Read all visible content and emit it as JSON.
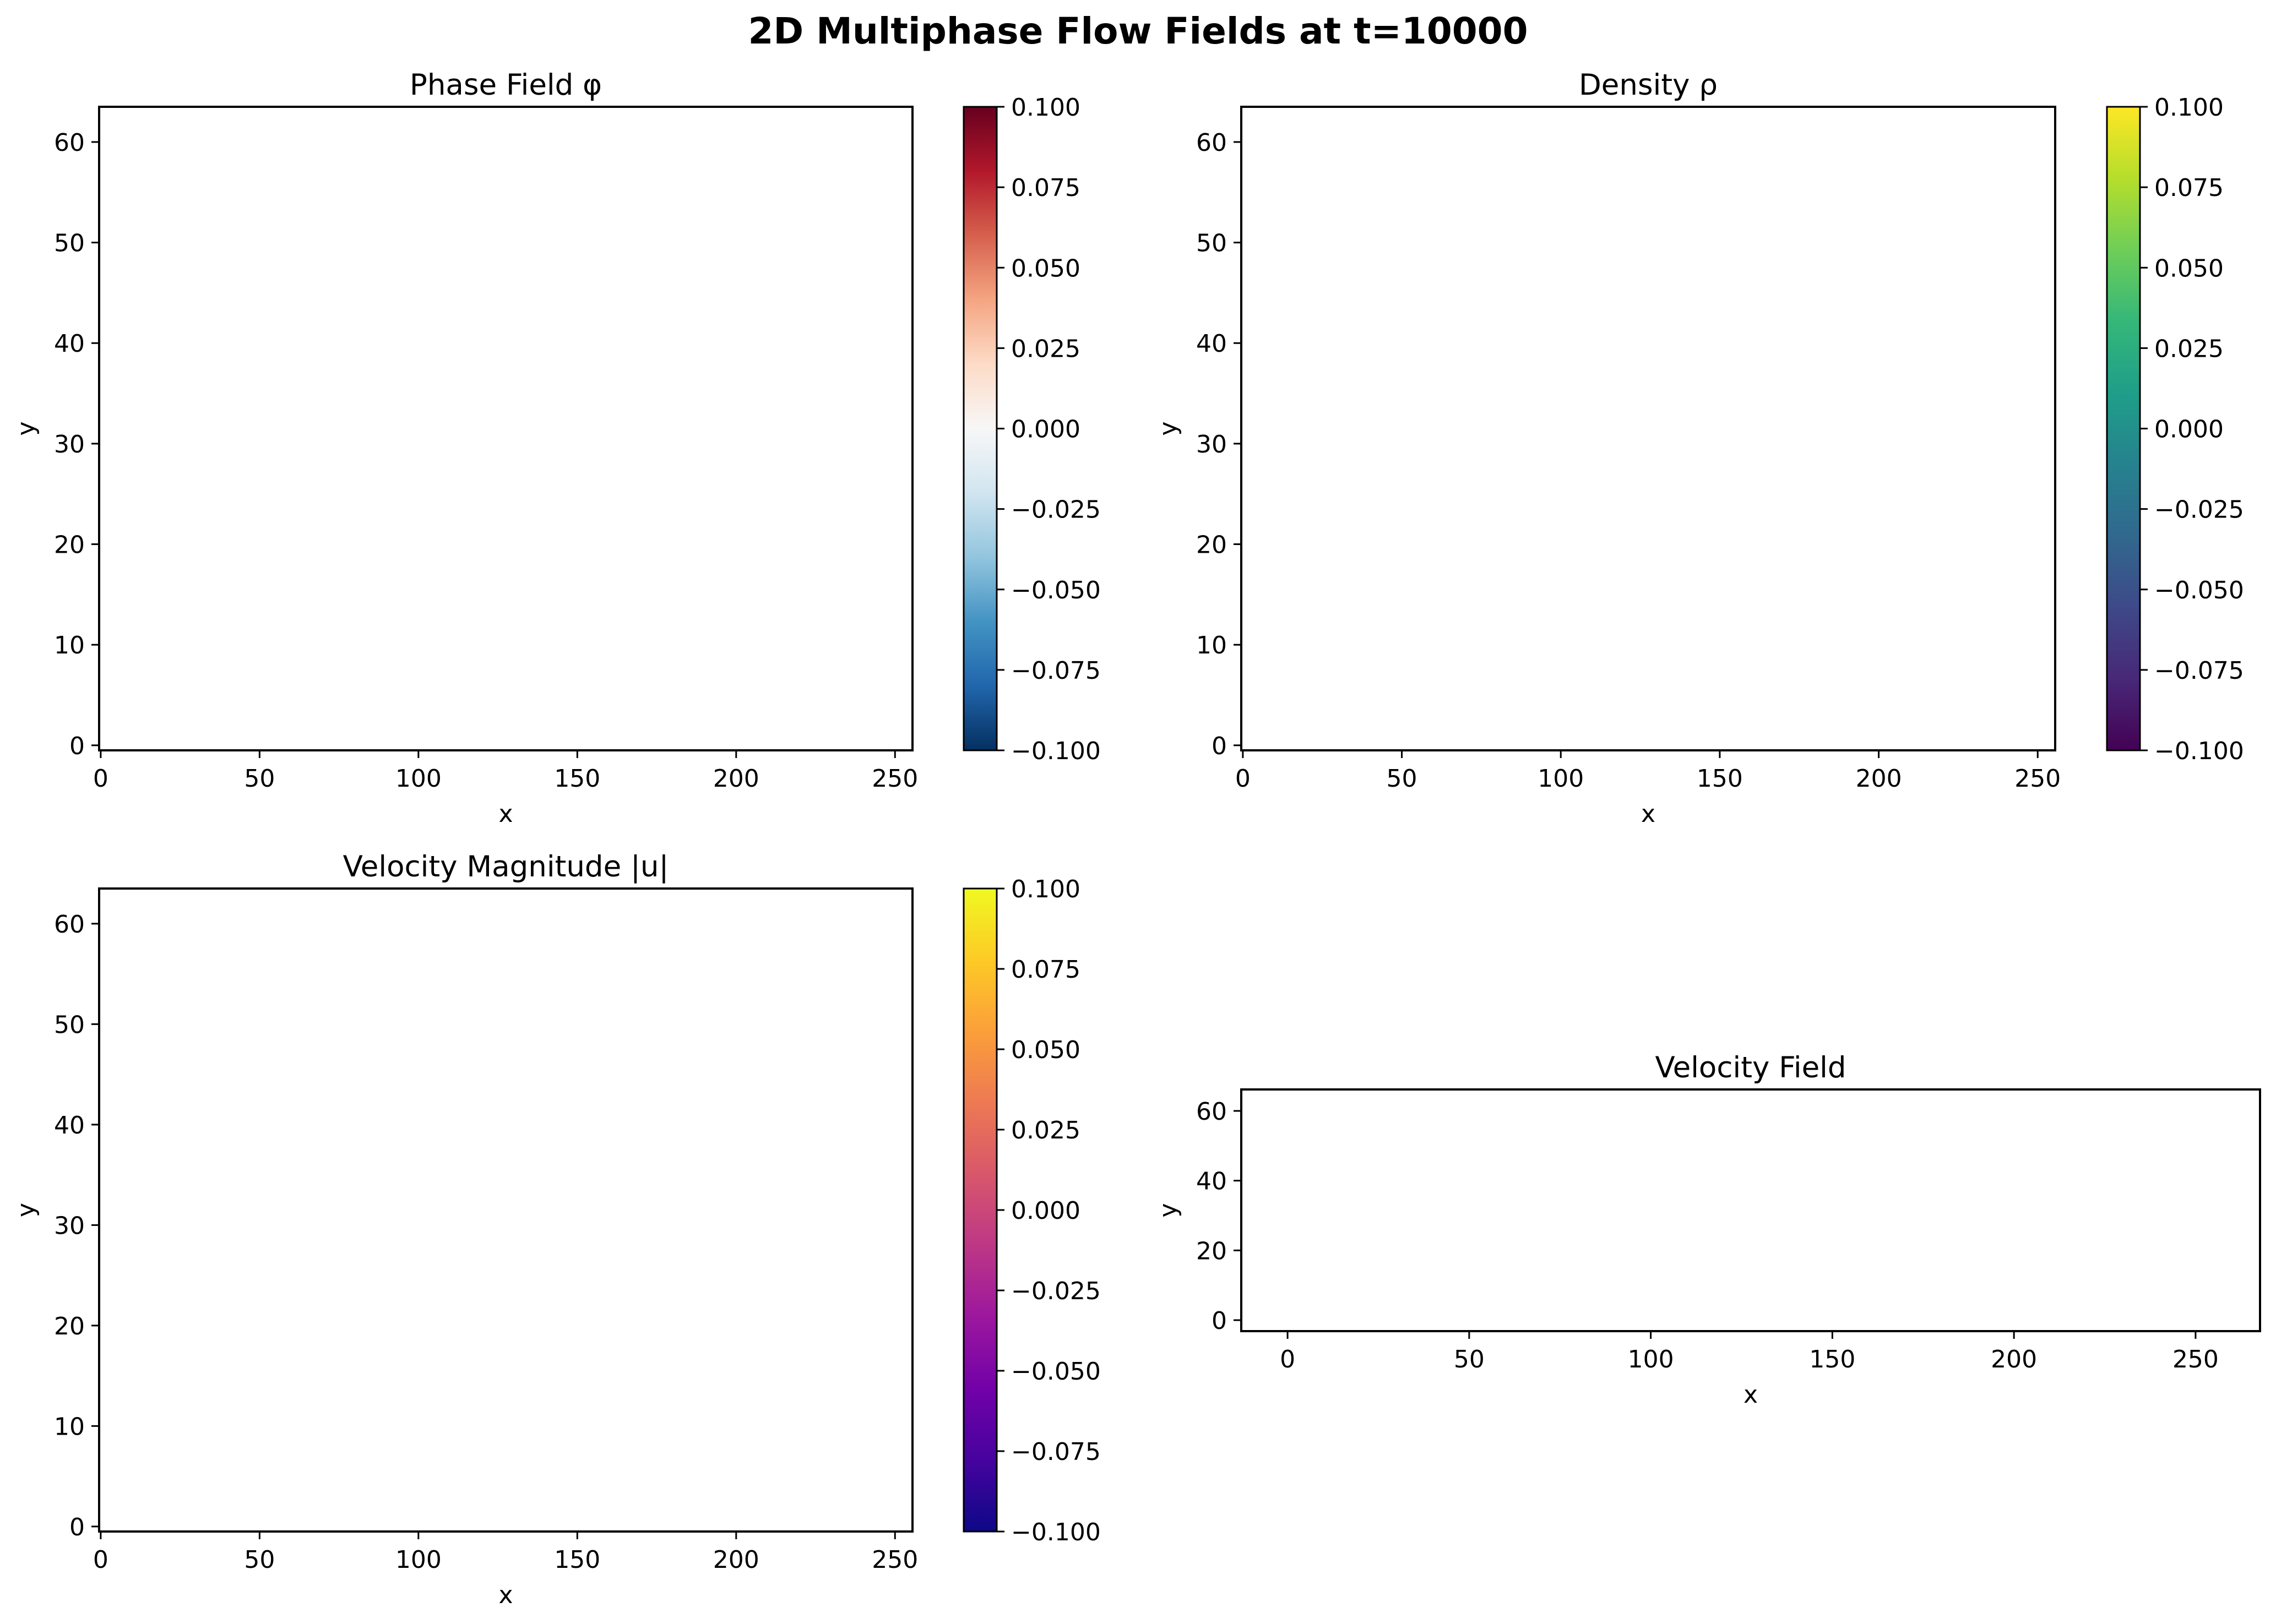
{
  "figure": {
    "title": "2D Multiphase Flow Fields at t=10000"
  },
  "chart_data": [
    {
      "type": "heatmap",
      "title": "Phase Field φ",
      "xlabel": "x",
      "ylabel": "y",
      "xlim": [
        -0.5,
        255.5
      ],
      "ylim": [
        -0.5,
        63.5
      ],
      "xticks": [
        0,
        50,
        100,
        150,
        200,
        250
      ],
      "yticks": [
        0,
        10,
        20,
        30,
        40,
        50,
        60
      ],
      "values": [],
      "colorbar": {
        "colormap": "RdBu_r",
        "colors": [
          "#053061",
          "#2166ac",
          "#4393c3",
          "#92c5de",
          "#d1e5f0",
          "#f7f7f7",
          "#fddbc7",
          "#f4a582",
          "#d6604d",
          "#b2182b",
          "#67001f"
        ],
        "range": [
          -0.1,
          0.1
        ],
        "ticks": [
          "0.100",
          "0.075",
          "0.050",
          "0.025",
          "0.000",
          "−0.025",
          "−0.050",
          "−0.075",
          "−0.100"
        ]
      }
    },
    {
      "type": "heatmap",
      "title": "Density ρ",
      "xlabel": "x",
      "ylabel": "y",
      "xlim": [
        -0.5,
        255.5
      ],
      "ylim": [
        -0.5,
        63.5
      ],
      "xticks": [
        0,
        50,
        100,
        150,
        200,
        250
      ],
      "yticks": [
        0,
        10,
        20,
        30,
        40,
        50,
        60
      ],
      "values": [],
      "colorbar": {
        "colormap": "viridis",
        "colors": [
          "#440154",
          "#482878",
          "#3e4989",
          "#31688e",
          "#26828e",
          "#1f9e89",
          "#35b779",
          "#6ece58",
          "#b5de2b",
          "#fde725"
        ],
        "range": [
          -0.1,
          0.1
        ],
        "ticks": [
          "0.100",
          "0.075",
          "0.050",
          "0.025",
          "0.000",
          "−0.025",
          "−0.050",
          "−0.075",
          "−0.100"
        ]
      }
    },
    {
      "type": "heatmap",
      "title": "Velocity Magnitude |u|",
      "xlabel": "x",
      "ylabel": "y",
      "xlim": [
        -0.5,
        255.5
      ],
      "ylim": [
        -0.5,
        63.5
      ],
      "xticks": [
        0,
        50,
        100,
        150,
        200,
        250
      ],
      "yticks": [
        0,
        10,
        20,
        30,
        40,
        50,
        60
      ],
      "values": [],
      "colorbar": {
        "colormap": "plasma",
        "colors": [
          "#0d0887",
          "#46039f",
          "#7201a8",
          "#9c179e",
          "#bd3786",
          "#d8576b",
          "#ed7953",
          "#fb9f3a",
          "#fdca26",
          "#f0f921"
        ],
        "range": [
          -0.1,
          0.1
        ],
        "ticks": [
          "0.100",
          "0.075",
          "0.050",
          "0.025",
          "0.000",
          "−0.025",
          "−0.050",
          "−0.075",
          "−0.100"
        ]
      }
    },
    {
      "type": "scatter",
      "title": "Velocity Field",
      "xlabel": "x",
      "ylabel": "y",
      "xlim": [
        -12.75,
        267.75
      ],
      "ylim": [
        -3.15,
        66.15
      ],
      "xticks": [
        0,
        50,
        100,
        150,
        200,
        250
      ],
      "yticks": [
        0,
        20,
        40,
        60
      ],
      "series": []
    }
  ]
}
